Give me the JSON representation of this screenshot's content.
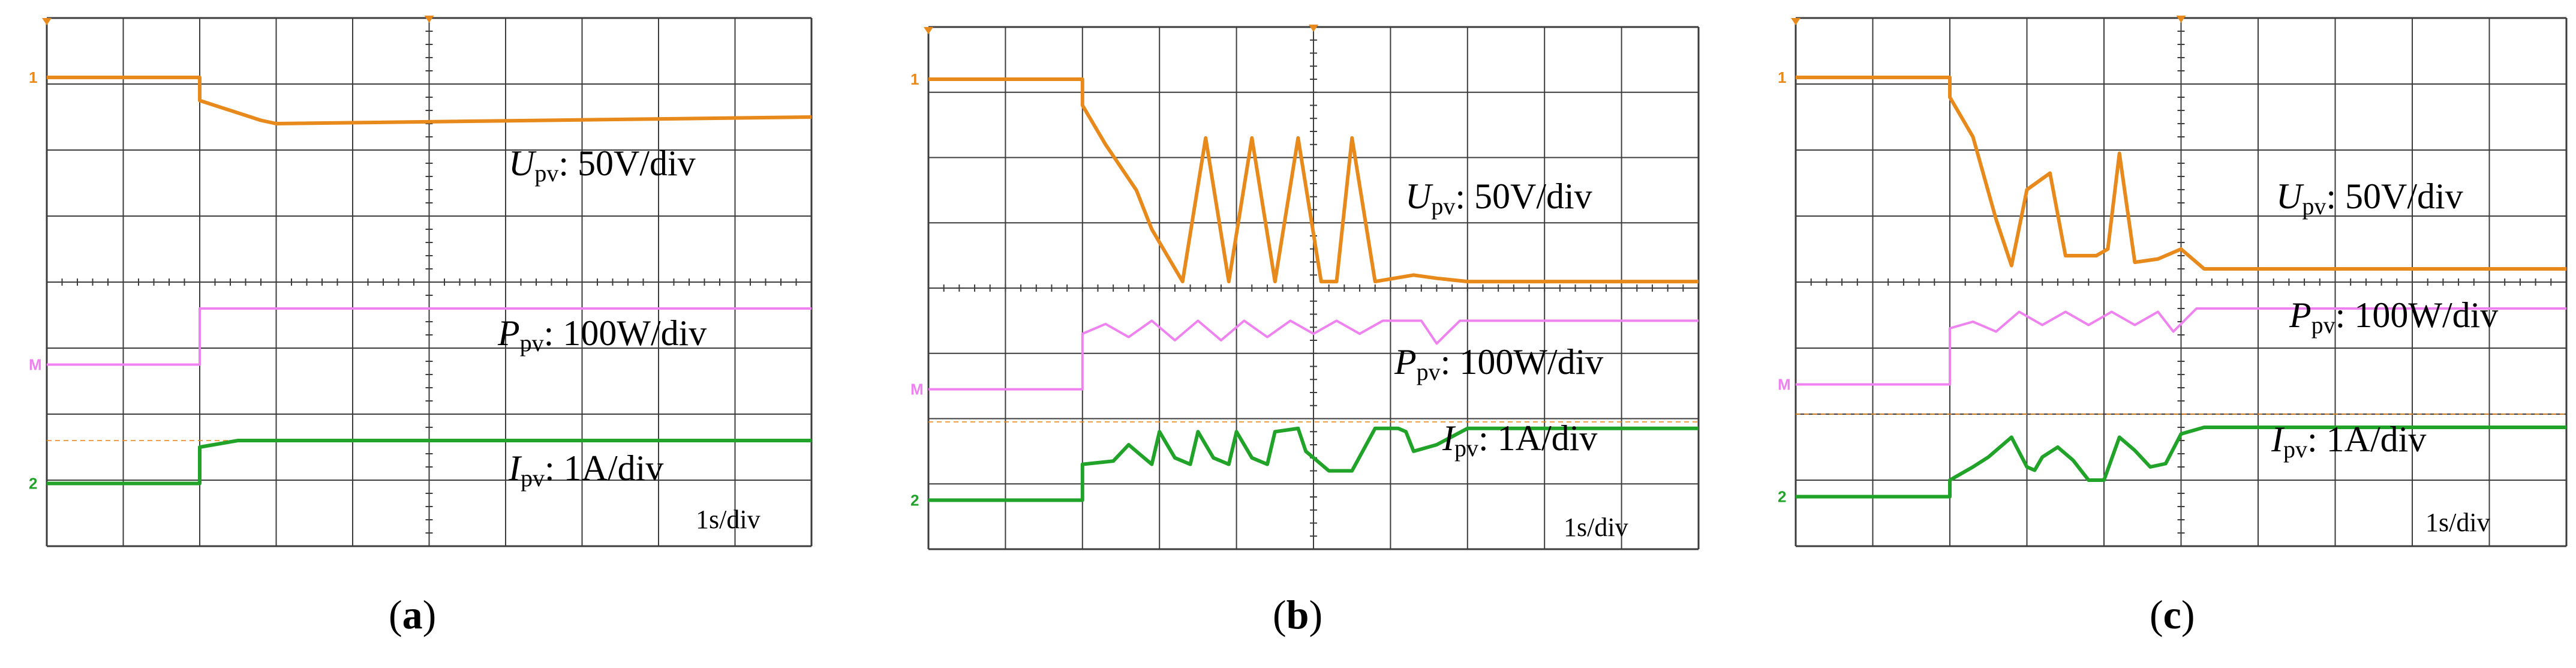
{
  "figure": {
    "panels": [
      {
        "caption_open": "(",
        "caption_letter": "a",
        "caption_close": ")"
      },
      {
        "caption_open": "(",
        "caption_letter": "b",
        "caption_close": ")"
      },
      {
        "caption_open": "(",
        "caption_letter": "c",
        "caption_close": ")"
      }
    ]
  },
  "colors": {
    "voltage": "#e8891b",
    "power": "#ee82ee",
    "current": "#21a32a",
    "grid": "#3c3c3c",
    "grid_minor": "#9a9a9a"
  },
  "chart_data": [
    {
      "type": "line",
      "panel": "a",
      "title": "",
      "x_scale": "1s/div",
      "x_divisions": 10,
      "y_divisions": 8,
      "step_time_div": 2.0,
      "series": [
        {
          "name": "Upv",
          "label_main": "U",
          "label_sub": "pv",
          "scale": "50V/div",
          "points": [
            [
              0,
              7.1
            ],
            [
              2.0,
              7.1
            ],
            [
              2.0,
              6.75
            ],
            [
              2.8,
              6.45
            ],
            [
              3.0,
              6.4
            ],
            [
              10,
              6.5
            ]
          ]
        },
        {
          "name": "Ppv",
          "label_main": "P",
          "label_sub": "pv",
          "scale": "100W/div",
          "points": [
            [
              0,
              2.75
            ],
            [
              2.0,
              2.75
            ],
            [
              2.0,
              3.6
            ],
            [
              10,
              3.6
            ]
          ]
        },
        {
          "name": "Ipv",
          "label_main": "I",
          "label_sub": "pv",
          "scale": "1A/div",
          "points": [
            [
              0,
              0.95
            ],
            [
              2.0,
              0.95
            ],
            [
              2.0,
              1.5
            ],
            [
              2.5,
              1.6
            ],
            [
              10,
              1.6
            ]
          ]
        }
      ],
      "reference_level_div": 1.6
    },
    {
      "type": "line",
      "panel": "b",
      "title": "",
      "x_scale": "1s/div",
      "x_divisions": 10,
      "y_divisions": 8,
      "step_time_div": 2.0,
      "series": [
        {
          "name": "Upv",
          "label_main": "U",
          "label_sub": "pv",
          "scale": "50V/div",
          "points": [
            [
              0,
              7.2
            ],
            [
              2.0,
              7.2
            ],
            [
              2.0,
              6.8
            ],
            [
              2.3,
              6.2
            ],
            [
              2.7,
              5.5
            ],
            [
              2.9,
              4.9
            ],
            [
              3.3,
              4.1
            ],
            [
              3.6,
              6.3
            ],
            [
              3.9,
              4.1
            ],
            [
              4.2,
              6.3
            ],
            [
              4.5,
              4.1
            ],
            [
              4.8,
              6.3
            ],
            [
              5.1,
              4.1
            ],
            [
              5.3,
              4.1
            ],
            [
              5.5,
              6.3
            ],
            [
              5.8,
              4.1
            ],
            [
              6.3,
              4.2
            ],
            [
              6.6,
              4.15
            ],
            [
              7.0,
              4.1
            ],
            [
              10,
              4.1
            ]
          ]
        },
        {
          "name": "Ppv",
          "label_main": "P",
          "label_sub": "pv",
          "scale": "100W/div",
          "points": [
            [
              0,
              2.45
            ],
            [
              2.0,
              2.45
            ],
            [
              2.0,
              3.3
            ],
            [
              2.3,
              3.45
            ],
            [
              2.6,
              3.25
            ],
            [
              2.9,
              3.5
            ],
            [
              3.2,
              3.2
            ],
            [
              3.5,
              3.5
            ],
            [
              3.8,
              3.2
            ],
            [
              4.1,
              3.5
            ],
            [
              4.4,
              3.25
            ],
            [
              4.7,
              3.5
            ],
            [
              5.0,
              3.3
            ],
            [
              5.3,
              3.5
            ],
            [
              5.6,
              3.3
            ],
            [
              5.9,
              3.5
            ],
            [
              6.4,
              3.5
            ],
            [
              6.6,
              3.15
            ],
            [
              6.9,
              3.5
            ],
            [
              10,
              3.5
            ]
          ]
        },
        {
          "name": "Ipv",
          "label_main": "I",
          "label_sub": "pv",
          "scale": "1A/div",
          "points": [
            [
              0,
              0.75
            ],
            [
              2.0,
              0.75
            ],
            [
              2.0,
              1.3
            ],
            [
              2.4,
              1.35
            ],
            [
              2.6,
              1.6
            ],
            [
              2.8,
              1.4
            ],
            [
              2.9,
              1.3
            ],
            [
              3.0,
              1.8
            ],
            [
              3.2,
              1.4
            ],
            [
              3.4,
              1.3
            ],
            [
              3.5,
              1.8
            ],
            [
              3.7,
              1.4
            ],
            [
              3.9,
              1.3
            ],
            [
              4.0,
              1.8
            ],
            [
              4.2,
              1.4
            ],
            [
              4.4,
              1.3
            ],
            [
              4.5,
              1.8
            ],
            [
              4.8,
              1.85
            ],
            [
              4.9,
              1.5
            ],
            [
              5.2,
              1.2
            ],
            [
              5.5,
              1.2
            ],
            [
              5.8,
              1.85
            ],
            [
              6.1,
              1.85
            ],
            [
              6.2,
              1.8
            ],
            [
              6.3,
              1.5
            ],
            [
              6.6,
              1.6
            ],
            [
              7.0,
              1.85
            ],
            [
              10,
              1.85
            ]
          ]
        }
      ],
      "reference_level_div": 1.95
    },
    {
      "type": "line",
      "panel": "c",
      "title": "",
      "x_scale": "1s/div",
      "x_divisions": 10,
      "y_divisions": 8,
      "step_time_div": 2.0,
      "series": [
        {
          "name": "Upv",
          "label_main": "U",
          "label_sub": "pv",
          "scale": "50V/div",
          "points": [
            [
              0,
              7.1
            ],
            [
              2.0,
              7.1
            ],
            [
              2.0,
              6.8
            ],
            [
              2.3,
              6.2
            ],
            [
              2.6,
              4.95
            ],
            [
              2.8,
              4.25
            ],
            [
              3.0,
              5.4
            ],
            [
              3.3,
              5.65
            ],
            [
              3.5,
              4.4
            ],
            [
              3.9,
              4.4
            ],
            [
              4.05,
              4.5
            ],
            [
              4.2,
              5.95
            ],
            [
              4.4,
              4.3
            ],
            [
              4.7,
              4.35
            ],
            [
              5.0,
              4.5
            ],
            [
              5.3,
              4.2
            ],
            [
              10,
              4.2
            ]
          ]
        },
        {
          "name": "Ppv",
          "label_main": "P",
          "label_sub": "pv",
          "scale": "100W/div",
          "points": [
            [
              0,
              2.45
            ],
            [
              2.0,
              2.45
            ],
            [
              2.0,
              3.3
            ],
            [
              2.3,
              3.4
            ],
            [
              2.6,
              3.25
            ],
            [
              2.9,
              3.55
            ],
            [
              3.2,
              3.35
            ],
            [
              3.5,
              3.55
            ],
            [
              3.8,
              3.35
            ],
            [
              4.1,
              3.55
            ],
            [
              4.4,
              3.35
            ],
            [
              4.7,
              3.55
            ],
            [
              4.9,
              3.25
            ],
            [
              5.2,
              3.6
            ],
            [
              10,
              3.6
            ]
          ]
        },
        {
          "name": "Ipv",
          "label_main": "I",
          "label_sub": "pv",
          "scale": "1A/div",
          "points": [
            [
              0,
              0.75
            ],
            [
              2.0,
              0.75
            ],
            [
              2.0,
              1.0
            ],
            [
              2.3,
              1.2
            ],
            [
              2.5,
              1.35
            ],
            [
              2.6,
              1.45
            ],
            [
              2.8,
              1.65
            ],
            [
              3.0,
              1.2
            ],
            [
              3.1,
              1.15
            ],
            [
              3.2,
              1.35
            ],
            [
              3.4,
              1.5
            ],
            [
              3.6,
              1.3
            ],
            [
              3.8,
              1.0
            ],
            [
              4.0,
              1.0
            ],
            [
              4.2,
              1.65
            ],
            [
              4.4,
              1.45
            ],
            [
              4.6,
              1.2
            ],
            [
              4.8,
              1.25
            ],
            [
              5.0,
              1.7
            ],
            [
              5.3,
              1.8
            ],
            [
              10,
              1.8
            ]
          ]
        }
      ],
      "reference_level_div": 2.0
    }
  ]
}
